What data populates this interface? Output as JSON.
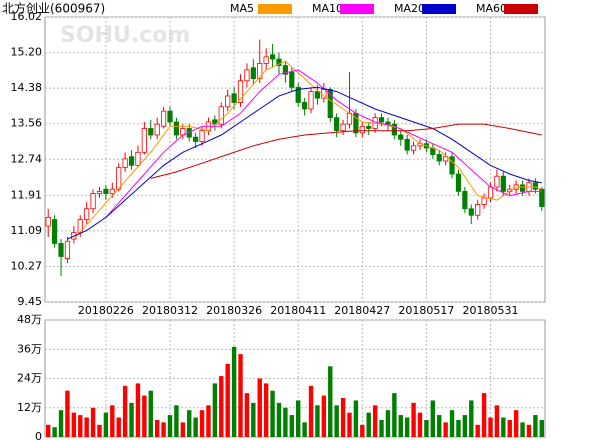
{
  "chart_data": [
    {
      "type": "candlestick",
      "title": "北方创业(600967)",
      "watermark": "SOHU.com",
      "categories": [
        null,
        null,
        null,
        null,
        null,
        null,
        null,
        null,
        null,
        "20180226",
        null,
        null,
        null,
        null,
        null,
        null,
        null,
        null,
        null,
        "20180312",
        null,
        null,
        null,
        null,
        null,
        null,
        null,
        null,
        null,
        "20180326",
        null,
        null,
        null,
        null,
        null,
        null,
        null,
        null,
        null,
        "20180411",
        null,
        null,
        null,
        null,
        null,
        null,
        null,
        null,
        null,
        "20180427",
        null,
        null,
        null,
        null,
        null,
        null,
        null,
        null,
        null,
        "20180517",
        null,
        null,
        null,
        null,
        null,
        null,
        null,
        null,
        null,
        "20180531",
        null,
        null,
        null,
        null,
        null,
        null,
        null,
        null
      ],
      "open": [
        11.2,
        11.35,
        10.8,
        10.45,
        10.9,
        11.05,
        11.35,
        11.6,
        11.95,
        12.05,
        11.95,
        12.05,
        12.55,
        12.8,
        12.6,
        12.9,
        13.45,
        13.3,
        13.5,
        13.85,
        13.6,
        13.3,
        13.45,
        13.25,
        13.15,
        13.4,
        13.65,
        13.55,
        13.95,
        14.25,
        14.05,
        14.55,
        14.85,
        14.6,
        14.95,
        15.15,
        15.05,
        14.9,
        14.75,
        14.4,
        14.05,
        13.9,
        14.3,
        14.15,
        14.35,
        13.7,
        13.4,
        13.55,
        13.8,
        13.35,
        13.5,
        13.45,
        13.7,
        13.6,
        13.55,
        13.3,
        13.2,
        12.95,
        13.05,
        13.1,
        13.0,
        12.85,
        12.7,
        12.8,
        12.4,
        12.0,
        11.6,
        11.45,
        11.7,
        11.85,
        12.1,
        12.35,
        12.0,
        12.05,
        12.15,
        12.0,
        12.2,
        12.05
      ],
      "high": [
        11.6,
        11.45,
        10.9,
        10.95,
        11.2,
        11.45,
        11.75,
        12.05,
        12.1,
        12.15,
        12.2,
        12.65,
        12.9,
        12.95,
        13.05,
        13.6,
        13.65,
        13.7,
        13.95,
        13.95,
        13.7,
        13.55,
        13.55,
        13.35,
        13.5,
        13.7,
        13.75,
        14.05,
        14.35,
        14.4,
        14.7,
        14.95,
        15.05,
        15.5,
        15.3,
        15.4,
        15.2,
        15.0,
        14.85,
        14.5,
        14.15,
        14.4,
        14.45,
        14.5,
        14.4,
        13.8,
        13.65,
        14.75,
        13.9,
        13.6,
        13.6,
        13.8,
        13.8,
        13.7,
        13.65,
        13.4,
        13.3,
        13.15,
        13.2,
        13.2,
        13.1,
        12.95,
        12.9,
        12.9,
        12.5,
        12.1,
        11.7,
        11.8,
        11.95,
        12.2,
        12.5,
        12.45,
        12.15,
        12.25,
        12.25,
        12.3,
        12.3,
        12.1
      ],
      "low": [
        10.95,
        10.7,
        10.05,
        10.35,
        10.8,
        10.95,
        11.25,
        11.5,
        11.85,
        11.8,
        11.85,
        12.0,
        12.45,
        12.5,
        12.55,
        12.85,
        13.2,
        13.2,
        13.45,
        13.5,
        13.2,
        13.2,
        13.15,
        13.0,
        13.05,
        13.3,
        13.4,
        13.45,
        13.85,
        13.9,
        13.95,
        14.4,
        14.45,
        14.5,
        14.8,
        14.85,
        14.7,
        14.5,
        14.3,
        13.95,
        13.75,
        13.8,
        14.0,
        14.05,
        13.6,
        13.25,
        13.3,
        13.45,
        13.25,
        13.25,
        13.3,
        13.35,
        13.5,
        13.4,
        13.2,
        13.05,
        12.85,
        12.85,
        12.95,
        12.9,
        12.75,
        12.6,
        12.6,
        12.3,
        11.9,
        11.5,
        11.25,
        11.35,
        11.6,
        11.75,
        12.0,
        11.9,
        11.9,
        11.95,
        11.9,
        11.9,
        11.95,
        11.55
      ],
      "close": [
        11.4,
        10.8,
        10.5,
        10.85,
        11.05,
        11.35,
        11.6,
        11.95,
        12.0,
        11.95,
        12.05,
        12.55,
        12.75,
        12.6,
        12.9,
        13.45,
        13.3,
        13.55,
        13.85,
        13.6,
        13.3,
        13.45,
        13.25,
        13.15,
        13.4,
        13.6,
        13.55,
        13.95,
        14.2,
        14.05,
        14.55,
        14.8,
        14.6,
        14.95,
        15.1,
        15.05,
        14.9,
        14.7,
        14.4,
        14.05,
        13.9,
        14.3,
        14.15,
        14.35,
        13.7,
        13.4,
        13.55,
        13.8,
        13.35,
        13.5,
        13.45,
        13.7,
        13.6,
        13.55,
        13.3,
        13.2,
        12.95,
        13.05,
        13.1,
        13.0,
        12.85,
        12.7,
        12.8,
        12.4,
        12.0,
        11.6,
        11.45,
        11.7,
        11.85,
        12.1,
        12.35,
        12.0,
        12.05,
        12.15,
        12.0,
        12.2,
        12.05,
        11.65
      ],
      "up_color": "#ff0000",
      "down_color": "#008000",
      "ylim": [
        9.45,
        16.02
      ],
      "yticks": [
        9.45,
        10.27,
        11.09,
        11.91,
        12.74,
        13.56,
        14.38,
        {
          "value": 15.2,
          "label": "15.20"
        },
        16.02
      ],
      "grid": true,
      "series": [
        {
          "name": "MA5",
          "color": "#ff9900",
          "x": [
            4,
            7,
            10,
            13,
            16,
            19,
            22,
            25,
            28,
            31,
            34,
            37,
            40,
            43,
            46,
            49,
            52,
            55,
            58,
            61,
            64,
            67,
            70,
            73,
            76,
            77
          ],
          "values": [
            10.9,
            11.4,
            11.9,
            12.4,
            12.9,
            13.5,
            13.5,
            13.4,
            13.8,
            14.3,
            14.8,
            15.0,
            14.6,
            14.2,
            13.9,
            13.6,
            13.55,
            13.45,
            13.1,
            12.95,
            12.55,
            11.9,
            11.8,
            12.1,
            12.1,
            12.05
          ]
        },
        {
          "name": "MA10",
          "color": "#ff00ff",
          "x": [
            9,
            12,
            15,
            18,
            21,
            24,
            27,
            30,
            33,
            36,
            39,
            42,
            45,
            48,
            51,
            54,
            57,
            60,
            63,
            66,
            69,
            72,
            75,
            77
          ],
          "values": [
            11.4,
            11.9,
            12.4,
            12.9,
            13.3,
            13.5,
            13.5,
            13.8,
            14.3,
            14.7,
            14.8,
            14.5,
            14.1,
            13.8,
            13.6,
            13.5,
            13.3,
            13.1,
            12.9,
            12.5,
            12.1,
            11.9,
            12.0,
            12.0
          ]
        },
        {
          "name": "MA20",
          "color": "#0000cc",
          "x": [
            3,
            6,
            9,
            12,
            15,
            18,
            21,
            24,
            27,
            30,
            33,
            36,
            39,
            42,
            45,
            48,
            51,
            54,
            57,
            60,
            63,
            66,
            69,
            72,
            75,
            77
          ],
          "values": [
            10.9,
            11.1,
            11.4,
            11.8,
            12.2,
            12.6,
            12.9,
            13.1,
            13.3,
            13.6,
            13.9,
            14.2,
            14.35,
            14.4,
            14.3,
            14.1,
            13.9,
            13.75,
            13.6,
            13.45,
            13.2,
            12.9,
            12.6,
            12.4,
            12.25,
            12.2
          ]
        },
        {
          "name": "MA60",
          "color": "#cc0000",
          "x": [
            16,
            20,
            24,
            28,
            32,
            36,
            40,
            44,
            48,
            52,
            56,
            60,
            64,
            68,
            72,
            77
          ],
          "values": [
            12.3,
            12.45,
            12.65,
            12.85,
            13.05,
            13.2,
            13.3,
            13.35,
            13.4,
            13.4,
            13.4,
            13.45,
            13.55,
            13.55,
            13.45,
            13.3
          ]
        }
      ]
    },
    {
      "type": "bar",
      "values": [
        5,
        4,
        11,
        19,
        10,
        9,
        8,
        12,
        5,
        10,
        13,
        8,
        21,
        14,
        22,
        17,
        19,
        7,
        6,
        9,
        13,
        6,
        11,
        8,
        11,
        13,
        22,
        25,
        30,
        37,
        34,
        18,
        14,
        24,
        22,
        19,
        14,
        12,
        9,
        15,
        6,
        21,
        13,
        17,
        29,
        13,
        16,
        10,
        15,
        5,
        10,
        13,
        7,
        11,
        18,
        9,
        8,
        14,
        10,
        7,
        15,
        9,
        6,
        11,
        7,
        9,
        15,
        5,
        18,
        8,
        13,
        8,
        7,
        11,
        6,
        5,
        9,
        7
      ],
      "ylim": [
        0,
        48
      ],
      "yticks": [
        0,
        {
          "value": 12,
          "label": "12万"
        },
        {
          "value": 24,
          "label": "24万"
        },
        {
          "value": 36,
          "label": "36万"
        },
        {
          "value": 48,
          "label": "48万"
        }
      ],
      "grid": true
    }
  ]
}
